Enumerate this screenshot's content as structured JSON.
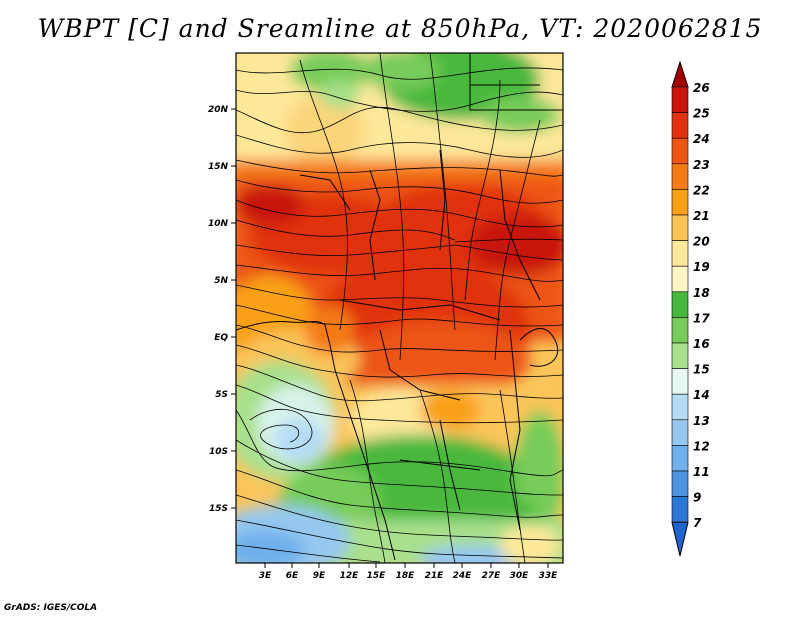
{
  "title": "WBPT [C] and Sreamline at 850hPa, VT: 2020062815",
  "footer": "GrADS: IGES/COLA",
  "map": {
    "lon_labels": [
      "3E",
      "6E",
      "9E",
      "12E",
      "15E",
      "18E",
      "21E",
      "24E",
      "27E",
      "30E",
      "33E"
    ],
    "lat_labels": [
      "20N",
      "15N",
      "10N",
      "5N",
      "EQ",
      "5S",
      "10S",
      "15S"
    ]
  },
  "colorbar": {
    "levels": [
      "26",
      "25",
      "24",
      "23",
      "22",
      "21",
      "20",
      "19",
      "18",
      "17",
      "16",
      "15",
      "14",
      "13",
      "12",
      "11",
      "9",
      "7"
    ],
    "colors": [
      "#a50000",
      "#c8140a",
      "#e0320f",
      "#ec5514",
      "#f47a14",
      "#f9a019",
      "#fbc55a",
      "#fde89a",
      "#48b83c",
      "#78cc5a",
      "#a8e08c",
      "#d8f2ea",
      "#b4dcf4",
      "#96c8f0",
      "#6eb0ec",
      "#4c94e0",
      "#2c78d4",
      "#1e64cc"
    ]
  }
}
